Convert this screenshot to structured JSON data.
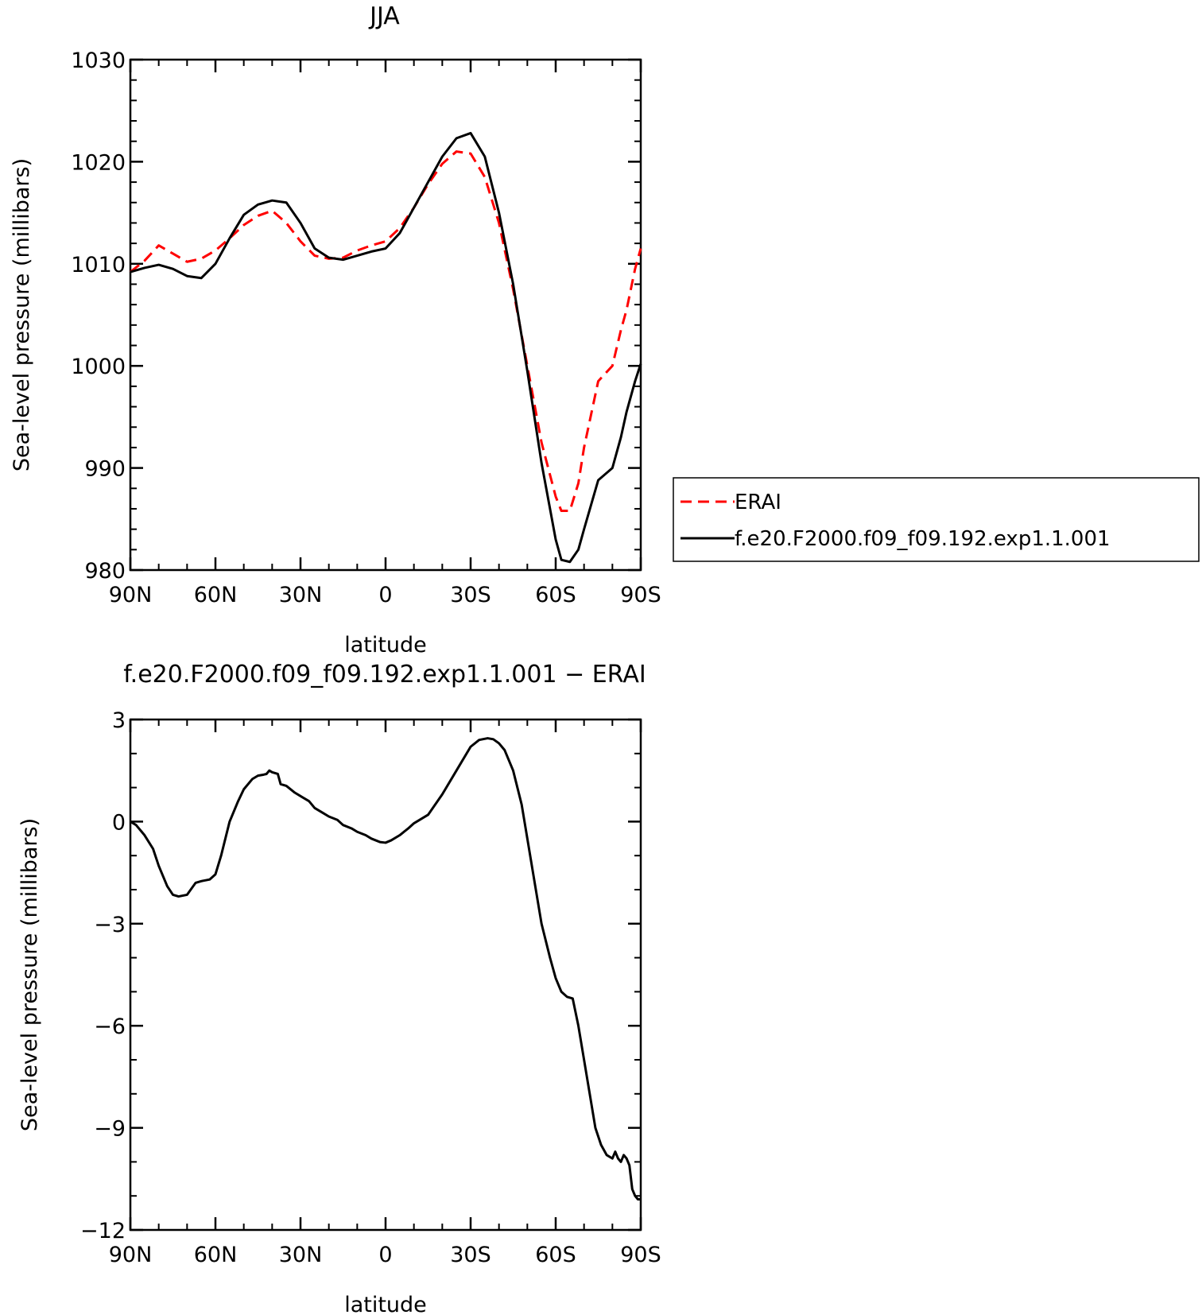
{
  "chart_data": [
    {
      "type": "line",
      "title": "JJA",
      "xlabel": "latitude",
      "ylabel": "Sea-level pressure (millibars)",
      "xlim": [
        90,
        -90
      ],
      "ylim": [
        980,
        1030
      ],
      "x_ticks": [
        90,
        60,
        30,
        0,
        -30,
        -60,
        -90
      ],
      "x_tick_labels": [
        "90N",
        "60N",
        "30N",
        "0",
        "30S",
        "60S",
        "90S"
      ],
      "y_ticks": [
        980,
        990,
        1000,
        1010,
        1020,
        1030
      ],
      "y_tick_labels": [
        "980",
        "990",
        "1000",
        "1010",
        "1020",
        "1030"
      ],
      "legend": "right",
      "x": [
        90,
        85,
        80,
        75,
        70,
        65,
        60,
        55,
        50,
        45,
        40,
        35,
        30,
        25,
        20,
        15,
        10,
        5,
        0,
        -5,
        -10,
        -15,
        -20,
        -25,
        -30,
        -35,
        -40,
        -45,
        -50,
        -55,
        -60,
        -62,
        -65,
        -68,
        -70,
        -75,
        -80,
        -83,
        -85,
        -88,
        -90
      ],
      "series": [
        {
          "name": "ERAI",
          "color": "#ff0000",
          "dash": "dashed",
          "values": [
            1009.2,
            1010.3,
            1011.8,
            1011.0,
            1010.2,
            1010.5,
            1011.3,
            1012.5,
            1013.8,
            1014.7,
            1015.2,
            1014.0,
            1012.2,
            1010.8,
            1010.5,
            1010.6,
            1011.3,
            1011.8,
            1012.2,
            1013.5,
            1015.5,
            1017.8,
            1019.8,
            1021.0,
            1020.8,
            1018.5,
            1014.0,
            1007.5,
            1000.0,
            992.5,
            987.2,
            985.8,
            985.8,
            988.5,
            992.0,
            998.5,
            1000.0,
            1003.5,
            1005.5,
            1009.5,
            1011.5
          ]
        },
        {
          "name": "f.e20.F2000.f09_f09.192.exp1.1.001",
          "color": "#000000",
          "dash": "solid",
          "values": [
            1009.2,
            1009.6,
            1009.9,
            1009.5,
            1008.8,
            1008.6,
            1010.0,
            1012.5,
            1014.8,
            1015.8,
            1016.2,
            1016.0,
            1014.0,
            1011.5,
            1010.6,
            1010.4,
            1010.8,
            1011.2,
            1011.5,
            1013.0,
            1015.5,
            1018.0,
            1020.5,
            1022.3,
            1022.8,
            1020.5,
            1015.0,
            1008.0,
            999.5,
            990.5,
            983.0,
            981.0,
            980.8,
            982.0,
            984.0,
            988.8,
            990.0,
            993.0,
            995.5,
            998.5,
            1000.2
          ]
        }
      ]
    },
    {
      "type": "line",
      "title": "f.e20.F2000.f09_f09.192.exp1.1.001 − ERAI",
      "xlabel": "latitude",
      "ylabel": "Sea-level pressure (millibars)",
      "xlim": [
        90,
        -90
      ],
      "ylim": [
        -12,
        3
      ],
      "x_ticks": [
        90,
        60,
        30,
        0,
        -30,
        -60,
        -90
      ],
      "x_tick_labels": [
        "90N",
        "60N",
        "30N",
        "0",
        "30S",
        "60S",
        "90S"
      ],
      "y_ticks": [
        -12,
        -9,
        -6,
        -3,
        0,
        3
      ],
      "y_tick_labels": [
        "−12",
        "−9",
        "−6",
        "−3",
        "0",
        "3"
      ],
      "x": [
        90,
        88,
        85,
        82,
        80,
        77,
        75,
        73,
        70,
        67,
        65,
        62,
        60,
        58,
        55,
        52,
        50,
        47,
        45,
        43,
        42,
        41,
        40,
        38,
        37,
        35,
        32,
        30,
        27,
        25,
        22,
        20,
        17,
        15,
        12,
        10,
        7,
        5,
        2,
        0,
        -2,
        -5,
        -8,
        -10,
        -15,
        -20,
        -25,
        -30,
        -33,
        -36,
        -38,
        -40,
        -42,
        -45,
        -48,
        -50,
        -53,
        -55,
        -58,
        -60,
        -62,
        -64,
        -66,
        -68,
        -70,
        -72,
        -74,
        -76,
        -78,
        -80,
        -81,
        -82,
        -83,
        -84,
        -85,
        -86,
        -87,
        -88,
        -89,
        -90
      ],
      "series": [
        {
          "name": "",
          "color": "#000000",
          "dash": "solid",
          "values": [
            0.0,
            -0.1,
            -0.4,
            -0.8,
            -1.3,
            -1.9,
            -2.15,
            -2.2,
            -2.15,
            -1.8,
            -1.75,
            -1.7,
            -1.55,
            -1.0,
            0.0,
            0.6,
            0.95,
            1.25,
            1.35,
            1.38,
            1.4,
            1.5,
            1.45,
            1.4,
            1.1,
            1.05,
            0.85,
            0.75,
            0.6,
            0.4,
            0.25,
            0.15,
            0.05,
            -0.1,
            -0.2,
            -0.3,
            -0.4,
            -0.5,
            -0.6,
            -0.62,
            -0.55,
            -0.4,
            -0.2,
            -0.05,
            0.2,
            0.8,
            1.5,
            2.2,
            2.4,
            2.45,
            2.42,
            2.3,
            2.1,
            1.5,
            0.5,
            -0.5,
            -2.0,
            -3.0,
            -4.0,
            -4.6,
            -5.0,
            -5.15,
            -5.2,
            -6.0,
            -7.0,
            -8.0,
            -9.0,
            -9.5,
            -9.8,
            -9.9,
            -9.7,
            -9.9,
            -10.0,
            -9.8,
            -9.9,
            -10.1,
            -10.8,
            -11.0,
            -11.1,
            -11.1
          ]
        }
      ]
    }
  ]
}
